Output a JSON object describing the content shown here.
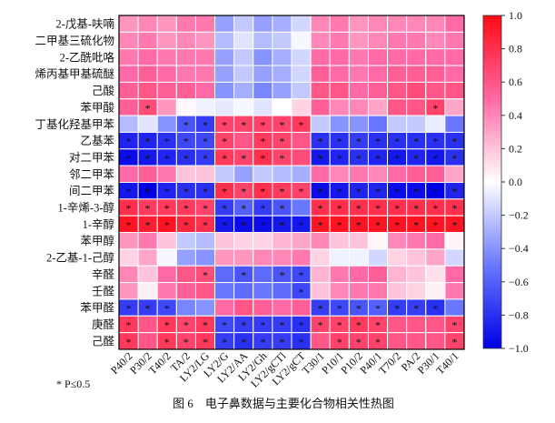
{
  "chart_data": {
    "type": "heatmap",
    "title": "",
    "caption": "图 6　电子鼻数据与主要化合物相关性热图",
    "footnote": "* P≤0.5",
    "xlabel": "",
    "ylabel": "",
    "colorbar": {
      "range": [
        -1.0,
        1.0
      ],
      "ticks": [
        "1.0",
        "0.8",
        "0.6",
        "0.4",
        "0.2",
        "0.0",
        "−0.2",
        "−0.4",
        "−0.6",
        "−0.8",
        "−1.0"
      ],
      "colors": {
        "negative": "#0000e6",
        "zero": "#ffffff",
        "positive": "#ff0a14"
      }
    },
    "columns": [
      "P40/2",
      "P30/2",
      "T40/2",
      "TA/2",
      "LY2/LG",
      "LY2/G",
      "LY2/AA",
      "LY2/Gh",
      "LY2/gCTl",
      "LY2/gCT",
      "T30/1",
      "P10/1",
      "P10/2",
      "P40/1",
      "T70/2",
      "PA/2",
      "P30/1",
      "T40/1"
    ],
    "rows": [
      {
        "label": "2-戊基-呋喃",
        "values": [
          0.35,
          0.4,
          0.35,
          0.45,
          0.45,
          -0.35,
          -0.2,
          -0.35,
          -0.3,
          -0.15,
          0.4,
          0.45,
          0.35,
          0.4,
          0.4,
          0.4,
          0.4,
          0.5
        ],
        "significant": []
      },
      {
        "label": "二甲基三硫化物",
        "values": [
          0.4,
          0.45,
          0.35,
          0.4,
          0.35,
          -0.25,
          -0.1,
          -0.25,
          -0.2,
          -0.03,
          0.4,
          0.45,
          0.35,
          0.4,
          0.45,
          0.45,
          0.4,
          0.45
        ],
        "significant": []
      },
      {
        "label": "2-乙酰吡咯",
        "values": [
          0.45,
          0.5,
          0.45,
          0.45,
          0.45,
          -0.35,
          -0.2,
          -0.4,
          -0.3,
          -0.15,
          0.5,
          0.5,
          0.45,
          0.5,
          0.5,
          0.5,
          0.5,
          0.5
        ],
        "significant": []
      },
      {
        "label": "烯丙基甲基硫醚",
        "values": [
          0.5,
          0.55,
          0.5,
          0.45,
          0.45,
          -0.35,
          -0.2,
          -0.35,
          -0.3,
          -0.15,
          0.55,
          0.5,
          0.45,
          0.5,
          0.55,
          0.55,
          0.55,
          0.5
        ],
        "significant": []
      },
      {
        "label": "己酸",
        "values": [
          0.55,
          0.6,
          0.55,
          0.55,
          0.5,
          -0.4,
          -0.3,
          -0.45,
          -0.35,
          -0.2,
          0.6,
          0.6,
          0.5,
          0.55,
          0.6,
          0.65,
          0.6,
          0.6
        ],
        "significant": []
      },
      {
        "label": "苯甲酸",
        "values": [
          0.55,
          0.65,
          0.35,
          0.02,
          -0.05,
          -0.08,
          -0.03,
          -0.1,
          0.0,
          0.15,
          0.55,
          0.4,
          0.4,
          0.3,
          0.6,
          0.6,
          0.7,
          0.3
        ],
        "significant": [
          1,
          16
        ]
      },
      {
        "label": "丁基化羟基甲苯",
        "values": [
          -0.25,
          -0.1,
          -0.4,
          -0.65,
          -0.75,
          0.7,
          0.7,
          0.7,
          0.7,
          0.75,
          -0.2,
          -0.4,
          -0.4,
          -0.5,
          -0.2,
          -0.2,
          -0.07,
          -0.5
        ],
        "significant": [
          3,
          4,
          5,
          6,
          7,
          8,
          9
        ]
      },
      {
        "label": "乙基苯",
        "values": [
          -0.85,
          -0.85,
          -0.8,
          -0.7,
          -0.7,
          0.7,
          0.6,
          0.75,
          0.7,
          0.6,
          -0.8,
          -0.8,
          -0.75,
          -0.8,
          -0.8,
          -0.8,
          -0.8,
          -0.8
        ],
        "significant": [
          0,
          1,
          2,
          3,
          4,
          5,
          7,
          8,
          10,
          11,
          12,
          13,
          14,
          15,
          16,
          17
        ]
      },
      {
        "label": "对二甲苯",
        "values": [
          -0.95,
          -0.9,
          -0.85,
          -0.8,
          -0.75,
          0.75,
          0.7,
          0.8,
          0.7,
          0.65,
          -0.9,
          -0.85,
          -0.8,
          -0.85,
          -0.9,
          -0.85,
          -0.9,
          -0.8
        ],
        "significant": [
          0,
          1,
          2,
          3,
          4,
          5,
          6,
          7,
          8,
          10,
          11,
          12,
          13,
          14,
          15,
          16,
          17
        ]
      },
      {
        "label": "邻二甲苯",
        "values": [
          0.5,
          0.55,
          0.45,
          0.2,
          0.2,
          -0.2,
          -0.35,
          -0.2,
          -0.25,
          -0.3,
          0.5,
          0.4,
          0.45,
          0.4,
          0.5,
          0.55,
          0.55,
          0.3
        ],
        "significant": []
      },
      {
        "label": "间二甲苯",
        "values": [
          -0.9,
          -1.0,
          -0.85,
          -0.8,
          -0.8,
          0.8,
          0.7,
          0.8,
          0.75,
          0.7,
          -0.95,
          -0.9,
          -0.85,
          -0.85,
          -0.95,
          -0.95,
          -1.0,
          -0.85
        ],
        "significant": [
          0,
          1,
          2,
          3,
          4,
          5,
          6,
          7,
          8,
          9,
          10,
          11,
          12,
          13,
          14,
          15,
          16,
          17
        ]
      },
      {
        "label": "1-辛烯-3-醇",
        "values": [
          0.8,
          0.75,
          0.75,
          0.75,
          0.7,
          -0.75,
          -0.6,
          -0.75,
          -0.65,
          -0.5,
          0.8,
          0.8,
          0.8,
          0.8,
          0.8,
          0.8,
          0.8,
          0.8
        ],
        "significant": [
          0,
          1,
          2,
          3,
          4,
          5,
          6,
          7,
          8,
          10,
          11,
          12,
          13,
          14,
          15,
          16,
          17
        ]
      },
      {
        "label": "1-辛醇",
        "values": [
          0.95,
          0.9,
          0.95,
          0.85,
          0.8,
          -0.9,
          -0.95,
          -0.95,
          -0.9,
          -0.9,
          0.95,
          0.95,
          0.95,
          0.95,
          0.95,
          0.95,
          0.95,
          0.95
        ],
        "significant": [
          0,
          1,
          2,
          3,
          4,
          5,
          6,
          7,
          8,
          9,
          10,
          11,
          12,
          13,
          14,
          15,
          16,
          17
        ]
      },
      {
        "label": "苯甲醇",
        "values": [
          0.35,
          0.45,
          0.2,
          -0.2,
          -0.25,
          0.2,
          0.15,
          0.15,
          0.25,
          0.3,
          0.4,
          0.2,
          0.2,
          0.03,
          0.4,
          0.45,
          0.5,
          0.03
        ],
        "significant": []
      },
      {
        "label": "2-乙基-1-己醇",
        "values": [
          0.15,
          0.3,
          -0.03,
          -0.35,
          -0.4,
          0.35,
          0.35,
          0.4,
          0.4,
          0.45,
          0.15,
          -0.05,
          -0.05,
          -0.15,
          0.15,
          0.2,
          0.3,
          -0.15
        ],
        "significant": []
      },
      {
        "label": "辛醛",
        "values": [
          0.4,
          0.2,
          0.5,
          0.6,
          0.65,
          -0.55,
          -0.65,
          -0.55,
          -0.65,
          -0.7,
          0.25,
          0.45,
          0.5,
          0.55,
          0.25,
          0.2,
          0.1,
          0.5
        ],
        "significant": [
          4,
          6,
          8,
          9
        ]
      },
      {
        "label": "壬醛",
        "values": [
          0.35,
          0.05,
          0.45,
          0.55,
          0.6,
          -0.5,
          -0.55,
          -0.5,
          -0.55,
          -0.7,
          0.2,
          0.4,
          0.45,
          0.45,
          0.2,
          0.15,
          0.05,
          0.45
        ],
        "significant": [
          9
        ]
      },
      {
        "label": "苯甲醛",
        "values": [
          -0.75,
          -0.75,
          -0.7,
          -0.45,
          -0.4,
          0.5,
          0.6,
          0.55,
          0.5,
          0.55,
          -0.75,
          -0.7,
          -0.65,
          -0.6,
          -0.75,
          -0.75,
          -0.8,
          -0.5
        ],
        "significant": [
          0,
          1,
          2,
          10,
          11,
          12,
          13,
          14,
          15,
          16
        ]
      },
      {
        "label": "庚醛",
        "values": [
          0.75,
          0.6,
          0.75,
          0.7,
          0.75,
          -0.7,
          -0.75,
          -0.75,
          -0.75,
          -0.8,
          0.7,
          0.7,
          0.75,
          0.7,
          0.6,
          0.6,
          0.6,
          0.7
        ],
        "significant": [
          0,
          2,
          3,
          4,
          5,
          6,
          7,
          8,
          9,
          10,
          11,
          12,
          13,
          17
        ]
      },
      {
        "label": "己醛",
        "values": [
          0.75,
          0.6,
          0.75,
          0.7,
          0.75,
          -0.75,
          -0.8,
          -0.75,
          -0.75,
          -0.8,
          0.6,
          0.7,
          0.7,
          0.7,
          0.6,
          0.6,
          0.6,
          0.7
        ],
        "significant": [
          0,
          2,
          3,
          4,
          5,
          6,
          7,
          8,
          9,
          11,
          12,
          13,
          17
        ]
      }
    ]
  }
}
